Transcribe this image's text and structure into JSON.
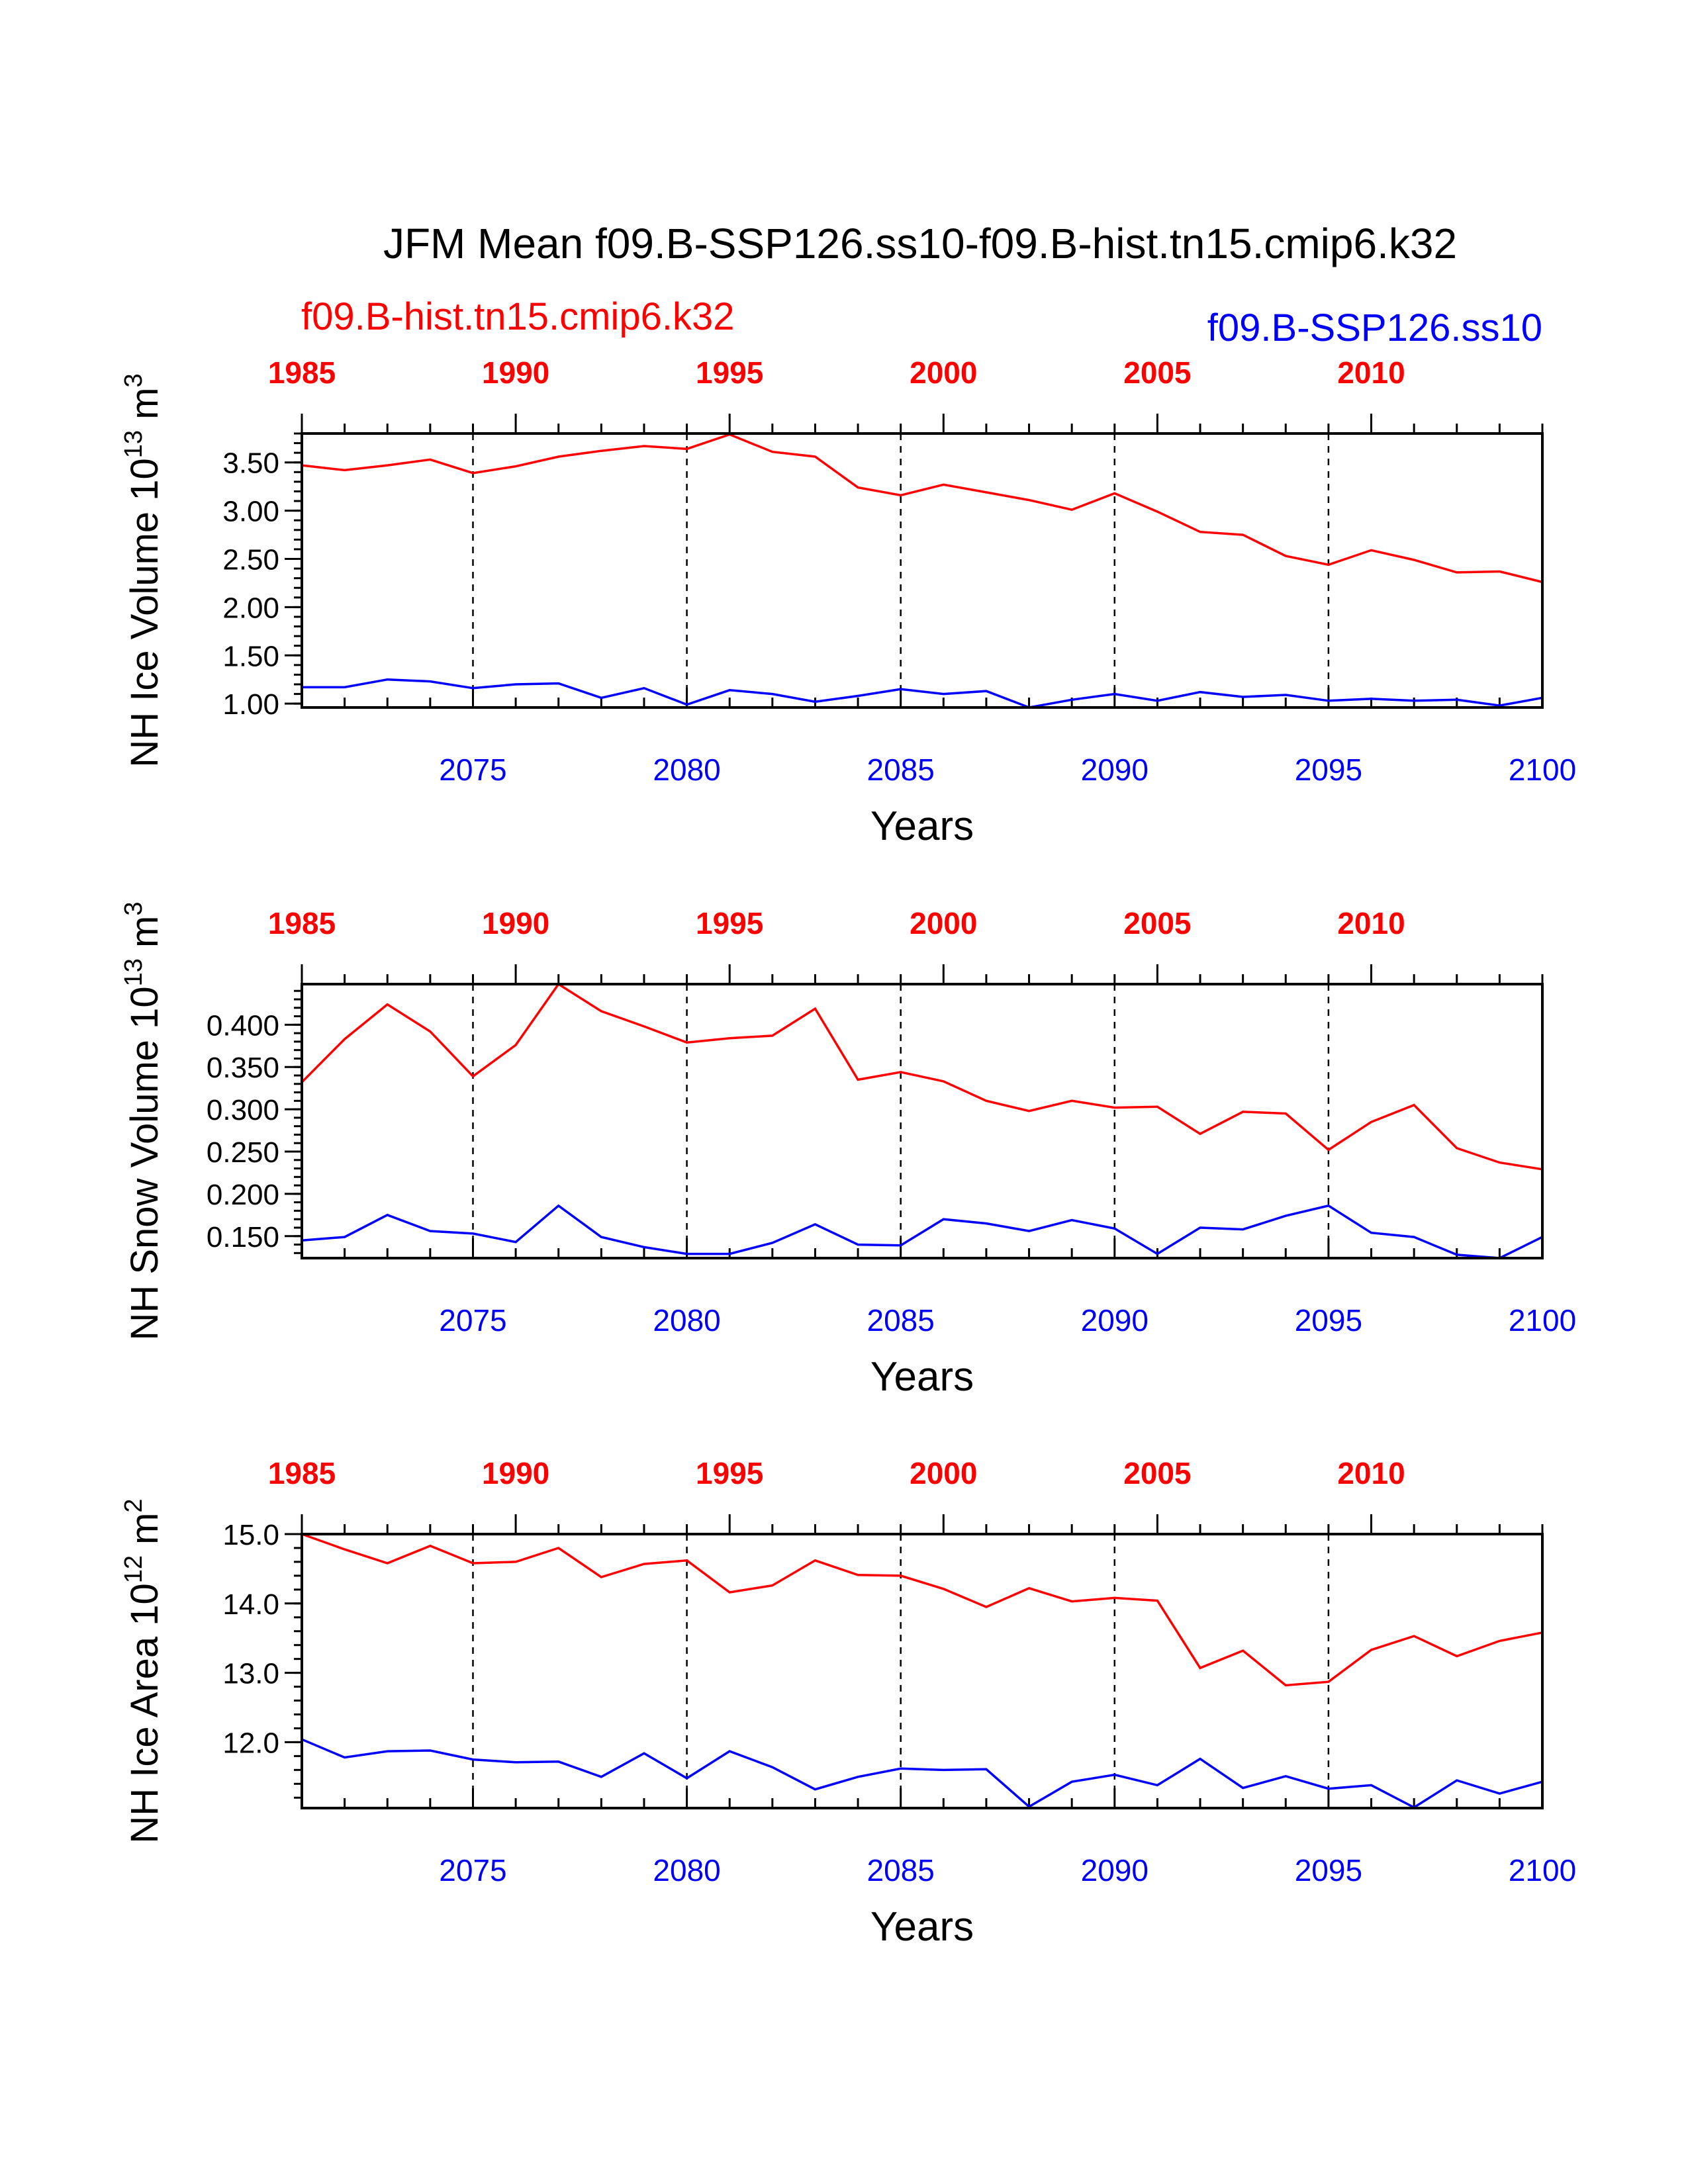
{
  "chart_data": {
    "type": "line",
    "title": "JFM Mean f09.B-SSP126.ss10-f09.B-hist.tn15.cmip6.k32",
    "series_labels": {
      "hist": "f09.B-hist.tn15.cmip6.k32",
      "ssp": "f09.B-SSP126.ss10"
    },
    "colors": {
      "hist": "#ff0000",
      "ssp": "#0000ff"
    },
    "x_bottom": {
      "range": [
        2071,
        2100
      ],
      "ticks": [
        2075,
        2080,
        2085,
        2090,
        2095,
        2100
      ],
      "label": "Years"
    },
    "x_top": {
      "range": [
        1985,
        2014
      ],
      "ticks": [
        1985,
        1990,
        1995,
        2000,
        2005,
        2010
      ]
    },
    "panels": [
      {
        "ylabel_main": "NH Ice Volume 10",
        "ylabel_sup": "13",
        "ylabel_unit": " m",
        "ylabel_unit_sup": "3",
        "ylim": [
          0.96,
          3.8
        ],
        "yticks": [
          "1.00",
          "1.50",
          "2.00",
          "2.50",
          "3.00",
          "3.50"
        ],
        "minor_step": 0.1,
        "series": [
          {
            "name": "f09.B-hist.tn15.cmip6.k32",
            "values": [
              3.47,
              3.42,
              3.47,
              3.53,
              3.39,
              3.46,
              3.56,
              3.62,
              3.67,
              3.64,
              3.79,
              3.61,
              3.56,
              3.24,
              3.16,
              3.27,
              3.19,
              3.11,
              3.01,
              3.18,
              2.99,
              2.78,
              2.75,
              2.53,
              2.44,
              2.59,
              2.49,
              2.36,
              2.37,
              2.26
            ]
          },
          {
            "name": "f09.B-SSP126.ss10",
            "values": [
              1.17,
              1.17,
              1.25,
              1.23,
              1.16,
              1.2,
              1.21,
              1.06,
              1.16,
              0.99,
              1.14,
              1.1,
              1.02,
              1.08,
              1.15,
              1.1,
              1.13,
              0.96,
              1.04,
              1.1,
              1.03,
              1.12,
              1.07,
              1.09,
              1.03,
              1.05,
              1.03,
              1.04,
              0.98,
              1.06
            ]
          }
        ]
      },
      {
        "ylabel_main": "NH Snow Volume 10",
        "ylabel_sup": "13",
        "ylabel_unit": " m",
        "ylabel_unit_sup": "3",
        "ylim": [
          0.124,
          0.448
        ],
        "yticks": [
          "0.150",
          "0.200",
          "0.250",
          "0.300",
          "0.350",
          "0.400"
        ],
        "minor_step": 0.01,
        "series": [
          {
            "name": "f09.B-hist.tn15.cmip6.k32",
            "values": [
              0.332,
              0.383,
              0.424,
              0.392,
              0.339,
              0.376,
              0.448,
              0.416,
              0.398,
              0.379,
              0.384,
              0.387,
              0.419,
              0.335,
              0.344,
              0.333,
              0.31,
              0.298,
              0.31,
              0.302,
              0.303,
              0.271,
              0.297,
              0.295,
              0.252,
              0.285,
              0.305,
              0.254,
              0.237,
              0.229
            ]
          },
          {
            "name": "f09.B-SSP126.ss10",
            "values": [
              0.145,
              0.149,
              0.175,
              0.156,
              0.153,
              0.143,
              0.186,
              0.149,
              0.137,
              0.129,
              0.129,
              0.142,
              0.164,
              0.14,
              0.139,
              0.17,
              0.165,
              0.156,
              0.169,
              0.159,
              0.129,
              0.16,
              0.158,
              0.174,
              0.186,
              0.154,
              0.149,
              0.128,
              0.124,
              0.149
            ]
          }
        ]
      },
      {
        "ylabel_main": "NH Ice Area 10",
        "ylabel_sup": "12",
        "ylabel_unit": " m",
        "ylabel_unit_sup": "2",
        "ylim": [
          11.05,
          15.0
        ],
        "yticks": [
          "12.0",
          "13.0",
          "14.0",
          "15.0"
        ],
        "minor_step": 0.2,
        "series": [
          {
            "name": "f09.B-hist.tn15.cmip6.k32",
            "values": [
              15.0,
              14.78,
              14.58,
              14.83,
              14.58,
              14.6,
              14.8,
              14.38,
              14.57,
              14.62,
              14.16,
              14.26,
              14.62,
              14.41,
              14.4,
              14.21,
              13.95,
              14.22,
              14.03,
              14.08,
              14.04,
              13.07,
              13.32,
              12.82,
              12.87,
              13.33,
              13.53,
              13.24,
              13.46,
              13.58
            ]
          },
          {
            "name": "f09.B-SSP126.ss10",
            "values": [
              12.04,
              11.78,
              11.87,
              11.88,
              11.75,
              11.71,
              11.72,
              11.5,
              11.84,
              11.48,
              11.87,
              11.64,
              11.32,
              11.5,
              11.62,
              11.6,
              11.61,
              11.07,
              11.43,
              11.53,
              11.38,
              11.76,
              11.34,
              11.51,
              11.33,
              11.38,
              11.06,
              11.45,
              11.26,
              11.43
            ]
          }
        ]
      }
    ]
  }
}
